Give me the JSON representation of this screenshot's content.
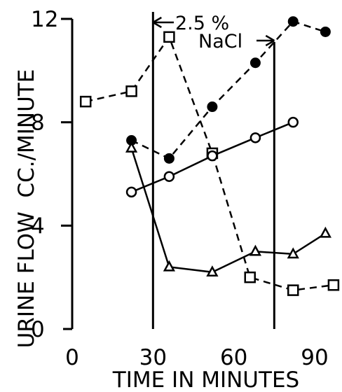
{
  "chart_data": {
    "type": "line",
    "xlabel": "TIME IN MINUTES",
    "ylabel": "URINE FLOW  CC./MINUTE",
    "xlim": [
      0,
      100
    ],
    "ylim": [
      0,
      12
    ],
    "x_ticks": [
      "0",
      "30",
      "60",
      "90"
    ],
    "y_ticks": [
      "0",
      "4",
      "8",
      "12"
    ],
    "annotation_line1": "2.5 %",
    "annotation_line2": "NaCl",
    "infusion_interval": [
      30,
      75
    ],
    "grid": false,
    "series": [
      {
        "marker": "square-open",
        "style": "dashed",
        "x": [
          5,
          22,
          36,
          52,
          66,
          82,
          97
        ],
        "y": [
          8.8,
          9.2,
          11.3,
          6.8,
          2.0,
          1.5,
          1.7
        ]
      },
      {
        "marker": "circle-filled",
        "style": "dashed",
        "x": [
          22,
          36,
          52,
          68,
          82,
          94
        ],
        "y": [
          7.3,
          6.6,
          8.6,
          10.3,
          11.9,
          11.5
        ]
      },
      {
        "marker": "circle-open",
        "style": "solid",
        "x": [
          22,
          36,
          52,
          68,
          82
        ],
        "y": [
          5.3,
          5.9,
          6.7,
          7.4,
          8.0
        ]
      },
      {
        "marker": "triangle-open",
        "style": "solid",
        "x": [
          22,
          36,
          52,
          68,
          82,
          94
        ],
        "y": [
          7.0,
          2.4,
          2.2,
          3.0,
          2.9,
          3.7
        ]
      }
    ]
  }
}
